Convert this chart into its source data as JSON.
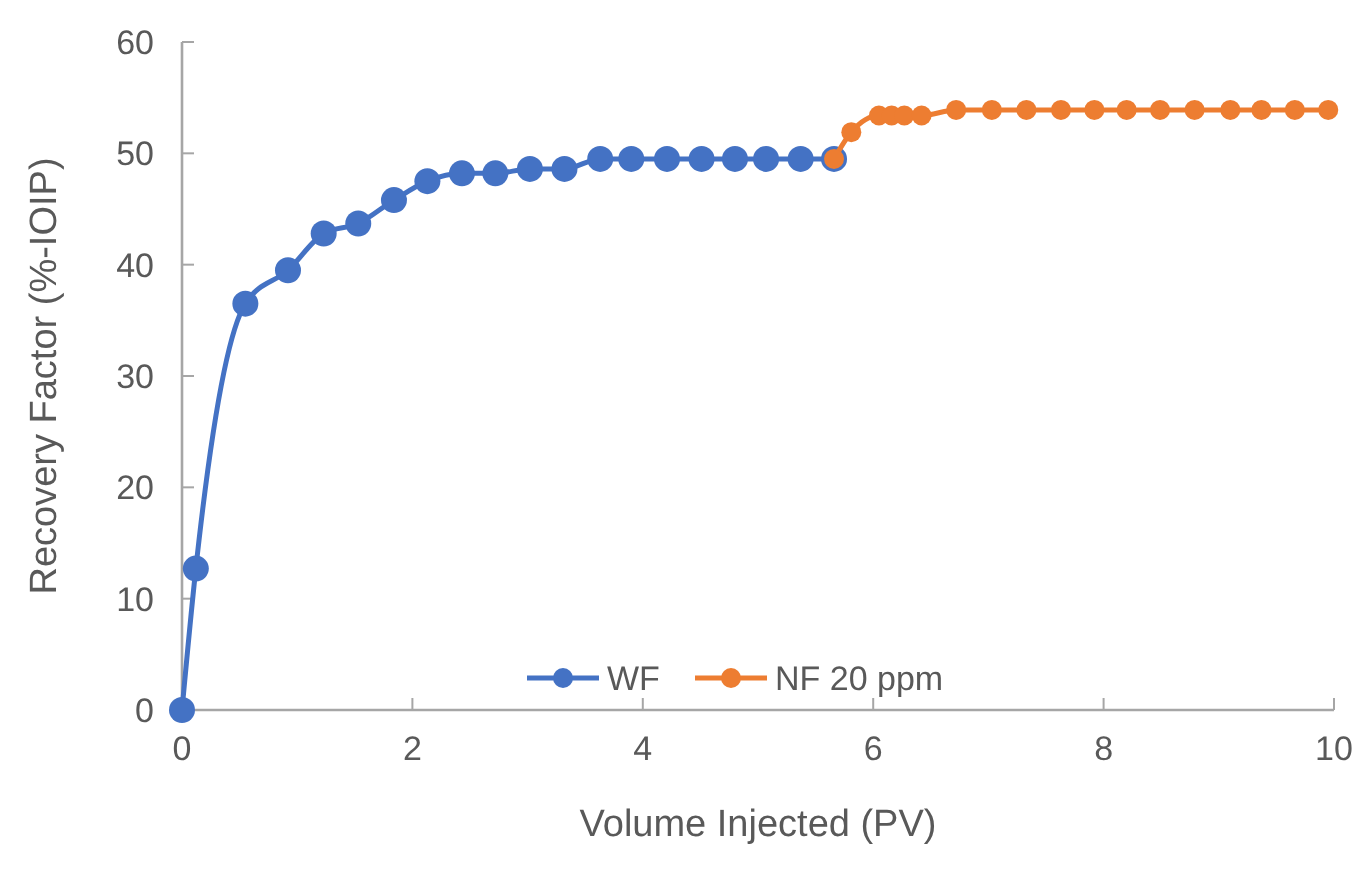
{
  "chart_data": {
    "type": "line",
    "xlabel": "Volume Injected (PV)",
    "ylabel": "Recovery Factor (%-IOIP)",
    "xlim": [
      0,
      10
    ],
    "xticks": [
      0,
      2,
      4,
      6,
      8,
      10
    ],
    "ylim": [
      0,
      60
    ],
    "yticks": [
      0,
      10,
      20,
      30,
      40,
      50,
      60
    ],
    "grid": false,
    "legend": "bottom",
    "marker": "circle",
    "line_style": "solid",
    "series": [
      {
        "name": "WF",
        "color": "#4472c4",
        "x": [
          0,
          0.12,
          0.55,
          0.92,
          1.23,
          1.53,
          1.84,
          2.13,
          2.43,
          2.72,
          3.02,
          3.32,
          3.63,
          3.9,
          4.21,
          4.51,
          4.8,
          5.07,
          5.37,
          5.66
        ],
        "values": [
          0,
          12.7,
          36.5,
          39.5,
          42.8,
          43.7,
          45.8,
          47.5,
          48.2,
          48.2,
          48.6,
          48.6,
          49.5,
          49.5,
          49.5,
          49.5,
          49.5,
          49.5,
          49.5,
          49.5
        ]
      },
      {
        "name": "NF 20 ppm",
        "color": "#ed7d31",
        "x": [
          5.66,
          5.81,
          6.05,
          6.16,
          6.27,
          6.42,
          6.72,
          7.03,
          7.33,
          7.63,
          7.92,
          8.2,
          8.49,
          8.79,
          9.1,
          9.37,
          9.66,
          9.95
        ],
        "values": [
          49.5,
          51.9,
          53.4,
          53.4,
          53.4,
          53.4,
          53.9,
          53.9,
          53.9,
          53.9,
          53.9,
          53.9,
          53.9,
          53.9,
          53.9,
          53.9,
          53.9,
          53.9
        ]
      }
    ]
  }
}
